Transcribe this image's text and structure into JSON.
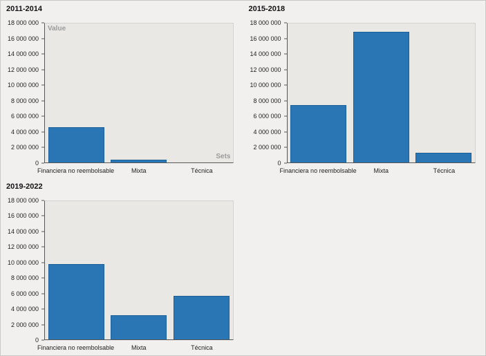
{
  "figure": {
    "background": "#f1f0ee",
    "plot_background": "#e9e8e5",
    "bar_color": "#2a76b5",
    "bar_border_color": "#1d5f97",
    "axis_color": "#555555",
    "axis_title_color": "#9b9b9b",
    "text_color": "#222222"
  },
  "chart_data": [
    {
      "type": "bar",
      "title": "2011-2014",
      "ylabel": "Value",
      "xlabel": "Sets",
      "categories": [
        "Financiera no reembolsable",
        "Mixta",
        "Técnica"
      ],
      "values": [
        4550000,
        350000,
        0
      ],
      "ylim": [
        0,
        18000000
      ],
      "ytick_step": 2000000,
      "ytick_labels": [
        "0",
        "2 000 000",
        "4 000 000",
        "6 000 000",
        "8 000 000",
        "10 000 000",
        "12 000 000",
        "14 000 000",
        "16 000 000",
        "18 000 000"
      ],
      "grid": false,
      "legend": "none"
    },
    {
      "type": "bar",
      "title": "2015-2018",
      "ylabel": "",
      "xlabel": "",
      "categories": [
        "Financiera no reembolsable",
        "Mixta",
        "Técnica"
      ],
      "values": [
        7400000,
        16900000,
        1200000
      ],
      "ylim": [
        0,
        18000000
      ],
      "ytick_step": 2000000,
      "ytick_labels": [
        "0",
        "2 000 000",
        "4 000 000",
        "6 000 000",
        "8 000 000",
        "10 000 000",
        "12 000 000",
        "14 000 000",
        "16 000 000",
        "18 000 000"
      ],
      "grid": false,
      "legend": "none"
    },
    {
      "type": "bar",
      "title": "2019-2022",
      "ylabel": "",
      "xlabel": "",
      "categories": [
        "Financiera no reembolsable",
        "Mixta",
        "Técnica"
      ],
      "values": [
        9800000,
        3100000,
        5650000
      ],
      "ylim": [
        0,
        18000000
      ],
      "ytick_step": 2000000,
      "ytick_labels": [
        "0",
        "2 000 000",
        "4 000 000",
        "6 000 000",
        "8 000 000",
        "10 000 000",
        "12 000 000",
        "14 000 000",
        "16 000 000",
        "18 000 000"
      ],
      "grid": false,
      "legend": "none"
    }
  ]
}
